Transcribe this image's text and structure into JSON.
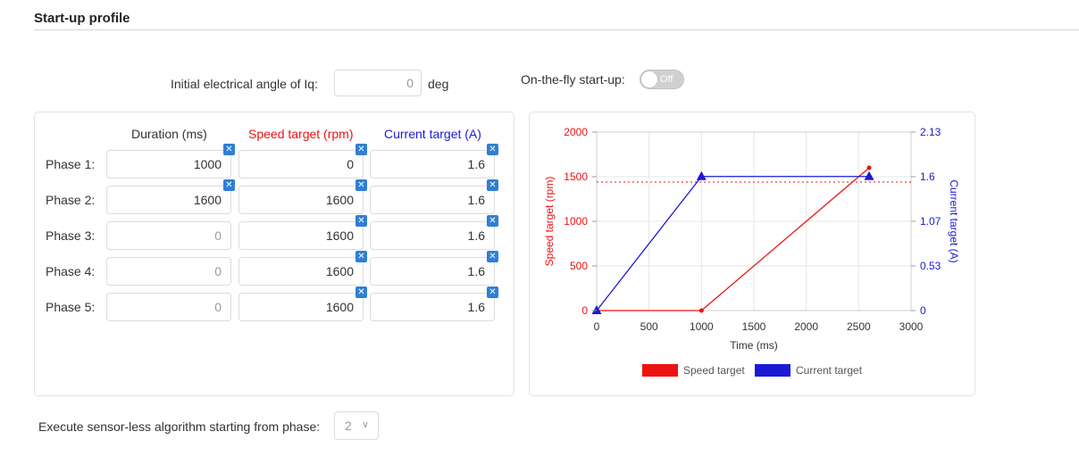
{
  "section": {
    "title": "Start-up profile"
  },
  "initial_angle": {
    "label": "Initial electrical angle of Iq:",
    "value": "0",
    "unit": "deg"
  },
  "on_the_fly": {
    "label": "On-the-fly start-up:",
    "state": "Off"
  },
  "table": {
    "headers": {
      "duration": "Duration (ms)",
      "speed": "Speed target (rpm)",
      "current": "Current target (A)"
    },
    "clear_glyph": "✕",
    "rows": [
      {
        "label": "Phase 1:",
        "duration": "1000",
        "speed": "0",
        "current": "1.6"
      },
      {
        "label": "Phase 2:",
        "duration": "1600",
        "speed": "1600",
        "current": "1.6"
      },
      {
        "label": "Phase 3:",
        "duration": "0",
        "speed": "1600",
        "current": "1.6"
      },
      {
        "label": "Phase 4:",
        "duration": "0",
        "speed": "1600",
        "current": "1.6"
      },
      {
        "label": "Phase 5:",
        "duration": "0",
        "speed": "1600",
        "current": "1.6"
      }
    ]
  },
  "sensorless": {
    "label": "Execute sensor-less algorithm starting from phase:",
    "value": "2"
  },
  "colors": {
    "speed": "#ee1111",
    "current": "#1a1ad6",
    "clear_button": "#2f7fd6"
  },
  "chart_data": {
    "type": "line",
    "xlabel": "Time (ms)",
    "ylabel": "Speed target (rpm)",
    "y2label": "Current target (A)",
    "xlim": [
      0,
      3000
    ],
    "ylim": [
      0,
      2000
    ],
    "y2lim": [
      0,
      2.13
    ],
    "xticks": [
      "0",
      "500",
      "1000",
      "1500",
      "2000",
      "2500",
      "3000"
    ],
    "yticks": [
      "0",
      "500",
      "1000",
      "1500",
      "2000"
    ],
    "y2ticks": [
      "0",
      "0.53",
      "1.07",
      "1.6",
      "2.13"
    ],
    "grid": true,
    "legend": "bottom",
    "reference_line": {
      "y": 1440,
      "style": "dotted",
      "color": "#ee1111"
    },
    "series": [
      {
        "name": "Speed target",
        "axis": "left",
        "color": "#ee1111",
        "marker": "circle",
        "x": [
          0,
          1000,
          2600
        ],
        "y": [
          0,
          0,
          1600
        ]
      },
      {
        "name": "Current target",
        "axis": "right",
        "color": "#1a1ad6",
        "marker": "triangle",
        "x": [
          0,
          1000,
          2600
        ],
        "y": [
          0,
          1.6,
          1.6
        ]
      }
    ]
  }
}
